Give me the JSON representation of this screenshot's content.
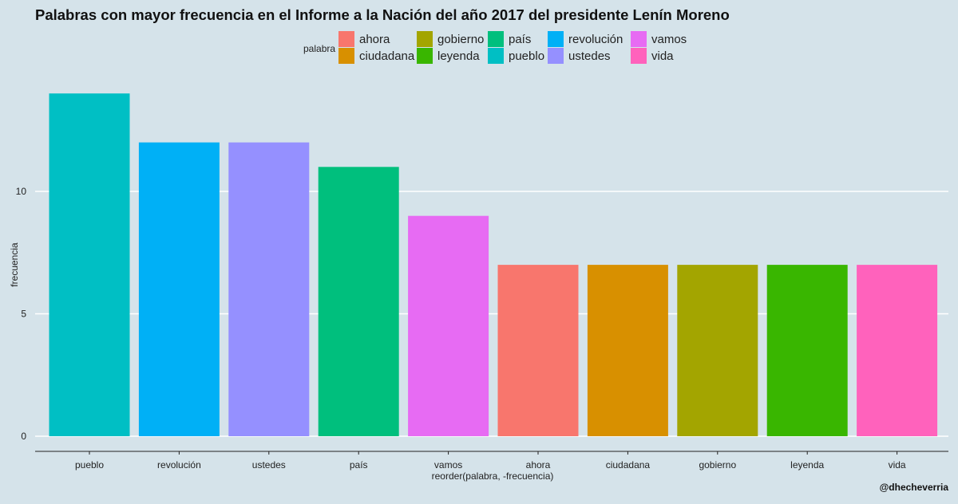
{
  "chart_data": {
    "type": "bar",
    "title": "Palabras con mayor frecuencia en el Informe a la Nación del año 2017 del presidente Lenín Moreno",
    "xlabel": "reorder(palabra, -frecuencia)",
    "ylabel": "frecuencia",
    "ylim": [
      0,
      14
    ],
    "yticks": [
      0,
      5,
      10
    ],
    "ytick_labels": [
      "0",
      "5",
      "10"
    ],
    "grid": true,
    "legend": {
      "title": "palabra",
      "placement": "top",
      "entries": [
        {
          "label": "ahora",
          "color": "#F8766D"
        },
        {
          "label": "ciudadana",
          "color": "#D89000"
        },
        {
          "label": "gobierno",
          "color": "#A3A500"
        },
        {
          "label": "leyenda",
          "color": "#39B600"
        },
        {
          "label": "país",
          "color": "#00BF7D"
        },
        {
          "label": "pueblo",
          "color": "#00BFC4"
        },
        {
          "label": "revolución",
          "color": "#00B0F6"
        },
        {
          "label": "ustedes",
          "color": "#9590FF"
        },
        {
          "label": "vamos",
          "color": "#E76BF3"
        },
        {
          "label": "vida",
          "color": "#FF62BC"
        }
      ]
    },
    "categories": [
      "pueblo",
      "revolución",
      "ustedes",
      "país",
      "vamos",
      "ahora",
      "ciudadana",
      "gobierno",
      "leyenda",
      "vida"
    ],
    "values": [
      14,
      12,
      12,
      11,
      9,
      7,
      7,
      7,
      7,
      7
    ],
    "colors": [
      "#00BFC4",
      "#00B0F6",
      "#9590FF",
      "#00BF7D",
      "#E76BF3",
      "#F8766D",
      "#D89000",
      "#A3A500",
      "#39B600",
      "#FF62BC"
    ]
  },
  "caption": "@dhecheverria"
}
